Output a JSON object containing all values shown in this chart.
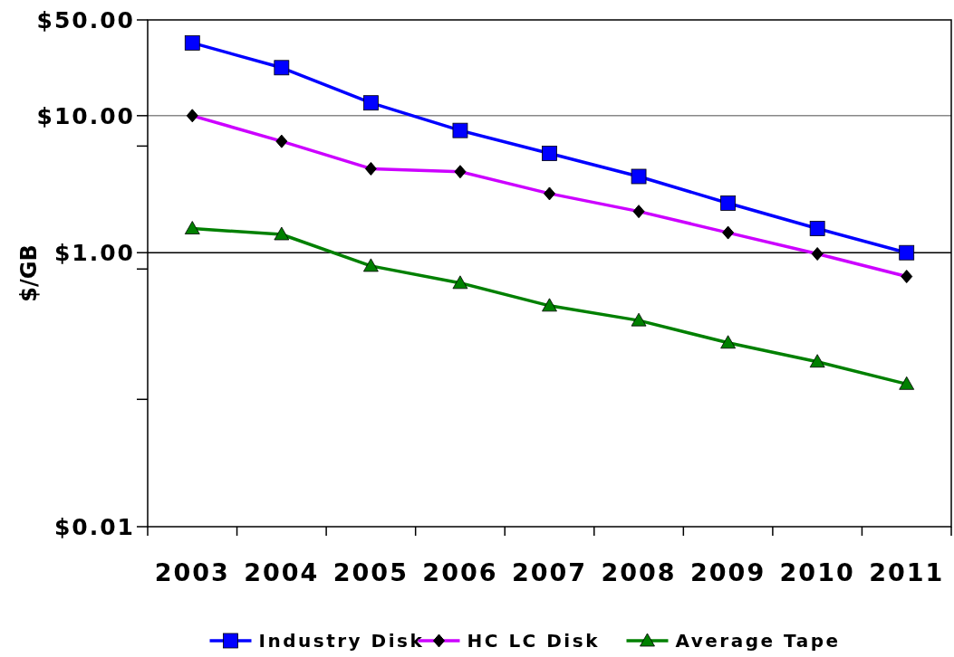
{
  "chart_data": {
    "type": "line",
    "ylabel": "$/GB",
    "log": "y",
    "categories": [
      "2003",
      "2004",
      "2005",
      "2006",
      "2007",
      "2008",
      "2009",
      "2010",
      "2011"
    ],
    "ylim": [
      0.01,
      50
    ],
    "yticks": [
      {
        "value": 50,
        "label": "$50.00"
      },
      {
        "value": 10,
        "label": "$10.00"
      },
      {
        "value": 6,
        "label": null
      },
      {
        "value": 1,
        "label": "$1.00"
      },
      {
        "value": 0.76,
        "label": null
      },
      {
        "value": 0.085,
        "label": null
      },
      {
        "value": 0.01,
        "label": "$0.01"
      }
    ],
    "ref_lines": [
      {
        "axis": "y",
        "value": 10,
        "color": "#888888"
      },
      {
        "axis": "y",
        "value": 1,
        "color": "#000000"
      }
    ],
    "legend": "bottom",
    "series": [
      {
        "name": "Industry Disk",
        "color": "#0000ff",
        "marker": "square",
        "values": [
          34,
          22.4,
          12.4,
          7.8,
          5.3,
          3.6,
          2.3,
          1.5,
          1.0
        ]
      },
      {
        "name": "HC LC Disk",
        "color": "#cc00ff",
        "marker": "diamond",
        "values": [
          10,
          6.5,
          4.1,
          3.9,
          2.7,
          2.0,
          1.4,
          0.98,
          0.67
        ]
      },
      {
        "name": "Average Tape",
        "color": "#008000",
        "marker": "triangle",
        "values": [
          1.5,
          1.36,
          0.8,
          0.6,
          0.41,
          0.32,
          0.22,
          0.16,
          0.11
        ]
      }
    ]
  }
}
